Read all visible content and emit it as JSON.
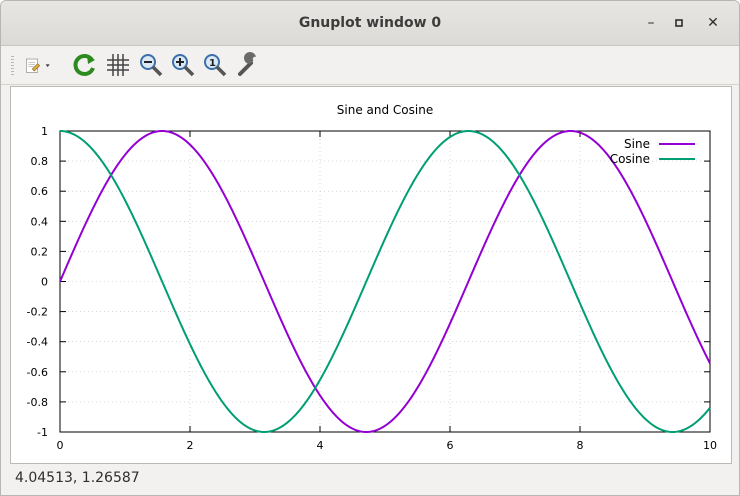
{
  "window": {
    "title": "Gnuplot window 0",
    "minimize": "–",
    "maximize": "▫",
    "close": "✕"
  },
  "toolbar": {
    "items": [
      {
        "name": "copy-to-clipboard",
        "icon": "clipboard-icon"
      },
      {
        "name": "replot",
        "icon": "refresh-icon"
      },
      {
        "name": "toggle-grid",
        "icon": "grid-icon"
      },
      {
        "name": "previous-zoom",
        "icon": "zoom-previous-icon"
      },
      {
        "name": "next-zoom",
        "icon": "zoom-next-icon"
      },
      {
        "name": "autoscale",
        "icon": "zoom-autoscale-icon"
      },
      {
        "name": "settings",
        "icon": "wrench-icon"
      }
    ]
  },
  "status": {
    "coordinates": "4.04513,  1.26587"
  },
  "chart_data": {
    "type": "line",
    "title": "Sine and Cosine",
    "xlabel": "",
    "ylabel": "",
    "xlim": [
      0,
      10
    ],
    "ylim": [
      -1,
      1
    ],
    "x_ticks": [
      "0",
      "2",
      "4",
      "6",
      "8",
      "10"
    ],
    "y_ticks": [
      "1",
      "0.8",
      "0.6",
      "0.4",
      "0.2",
      "0",
      "-0.2",
      "-0.4",
      "-0.6",
      "-0.8",
      "-1"
    ],
    "grid": true,
    "legend_position": "top-right",
    "series": [
      {
        "name": "Sine",
        "function": "sin(x)",
        "color": "#9400d3"
      },
      {
        "name": "Cosine",
        "function": "cos(x)",
        "color": "#009e73"
      }
    ]
  }
}
